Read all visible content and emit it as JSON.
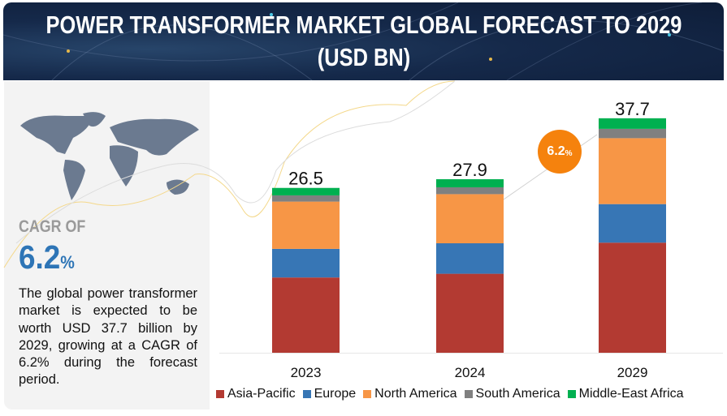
{
  "header": {
    "title_line1": "POWER TRANSFORMER MARKET GLOBAL FORECAST TO 2029",
    "title_line2": "(USD BN)"
  },
  "sidebar": {
    "map_icon": "world-map",
    "cagr_label": "CAGR OF",
    "cagr_value": "6.2",
    "cagr_unit": "%",
    "description": "The global power transformer market is expected to be worth USD 37.7 billion by 2029, growing at a CAGR of 6.2% during the forecast period."
  },
  "bubble": {
    "value": "6.2",
    "unit": "%",
    "color": "#f5820d"
  },
  "chart_data": {
    "type": "bar",
    "stacked": true,
    "categories": [
      "2023",
      "2024",
      "2029"
    ],
    "totals": [
      "26.5",
      "27.9",
      "37.7"
    ],
    "series": [
      {
        "name": "Asia-Pacific",
        "color": "#b33a32",
        "values": [
          12.1,
          12.7,
          17.7
        ]
      },
      {
        "name": "Europe",
        "color": "#3776b5",
        "values": [
          4.6,
          4.9,
          6.2
        ]
      },
      {
        "name": "North America",
        "color": "#f79646",
        "values": [
          7.6,
          7.9,
          10.6
        ]
      },
      {
        "name": "South America",
        "color": "#808080",
        "values": [
          1.0,
          1.1,
          1.5
        ]
      },
      {
        "name": "Middle-East Africa",
        "color": "#00b050",
        "values": [
          1.2,
          1.3,
          1.7
        ]
      }
    ],
    "grid": false,
    "legend": "bottom",
    "ylim": [
      0,
      40
    ]
  }
}
